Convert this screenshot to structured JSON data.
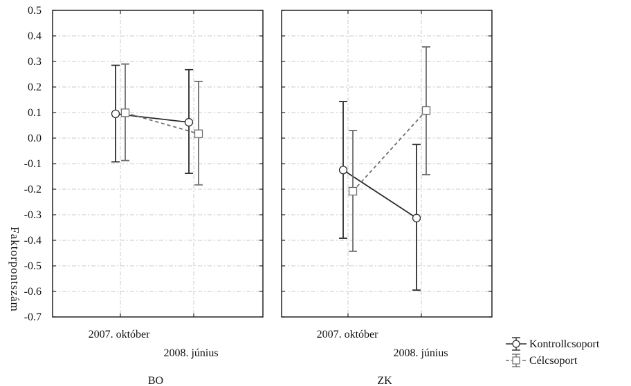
{
  "chart_data": {
    "type": "line",
    "ylabel": "Faktorpontszám",
    "ylim": [
      -0.7,
      0.5
    ],
    "yticks": [
      "0.5",
      "0.4",
      "0.3",
      "0.2",
      "0.1",
      "0.0",
      "-0.1",
      "-0.2",
      "-0.3",
      "-0.4",
      "-0.5",
      "-0.6",
      "-0.7"
    ],
    "categories": [
      "2007. október",
      "2008. június"
    ],
    "grid": true,
    "legend_position": "bottom-right",
    "panels": [
      {
        "label": "BO",
        "series": [
          {
            "name": "Kontrollcsoport",
            "values": [
              0.095,
              0.062
            ],
            "lower": [
              -0.093,
              -0.138
            ],
            "upper": [
              0.285,
              0.268
            ]
          },
          {
            "name": "Célcsoport",
            "values": [
              0.099,
              0.017
            ],
            "lower": [
              -0.088,
              -0.183
            ],
            "upper": [
              0.29,
              0.222
            ]
          }
        ]
      },
      {
        "label": "ZK",
        "series": [
          {
            "name": "Kontrollcsoport",
            "values": [
              -0.125,
              -0.313
            ],
            "lower": [
              -0.392,
              -0.595
            ],
            "upper": [
              0.143,
              -0.025
            ]
          },
          {
            "name": "Célcsoport",
            "values": [
              -0.208,
              0.108
            ],
            "lower": [
              -0.443,
              -0.143
            ],
            "upper": [
              0.03,
              0.357
            ]
          }
        ]
      }
    ],
    "series_styles": [
      {
        "name": "Kontrollcsoport",
        "color": "#2b2b2b",
        "marker": "circle",
        "line": "solid"
      },
      {
        "name": "Célcsoport",
        "color": "#6e6e6e",
        "marker": "square",
        "line": "dashed"
      }
    ]
  }
}
